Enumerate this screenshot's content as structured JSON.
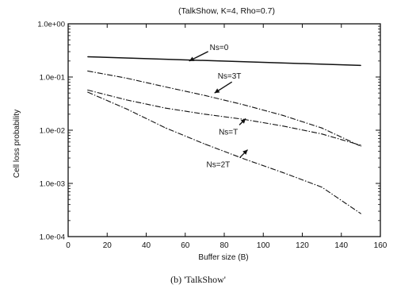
{
  "chart_data": {
    "type": "line",
    "title": "(TalkShow, K=4, Rho=0.7)",
    "xlabel": "Buffer size (B)",
    "ylabel": "Cell loss probability",
    "caption": "(b) 'TalkShow'",
    "y_scale": "log",
    "xlim": [
      0,
      160
    ],
    "ylim": [
      0.0001,
      1
    ],
    "x_ticks": [
      0,
      20,
      40,
      60,
      80,
      100,
      120,
      140,
      160
    ],
    "y_ticks": [
      {
        "value": 1,
        "label": "1.0e+00"
      },
      {
        "value": 0.1,
        "label": "1.0e-01"
      },
      {
        "value": 0.01,
        "label": "1.0e-02"
      },
      {
        "value": 0.001,
        "label": "1.0e-03"
      },
      {
        "value": 0.0001,
        "label": "1.0e-04"
      }
    ],
    "series": [
      {
        "name": "Ns=0",
        "dash": "solid",
        "x": [
          10,
          150
        ],
        "y": [
          0.24,
          0.165
        ]
      },
      {
        "name": "Ns=3T",
        "dash": "dashdot",
        "x": [
          10,
          30,
          50,
          70,
          90,
          110,
          130,
          150
        ],
        "y": [
          0.13,
          0.095,
          0.065,
          0.045,
          0.03,
          0.019,
          0.011,
          0.005
        ]
      },
      {
        "name": "Ns=T",
        "dash": "dashdot",
        "x": [
          10,
          30,
          50,
          70,
          90,
          110,
          130,
          150
        ],
        "y": [
          0.057,
          0.037,
          0.026,
          0.02,
          0.016,
          0.012,
          0.0085,
          0.0052
        ]
      },
      {
        "name": "Ns=2T",
        "dash": "dashdot",
        "x": [
          10,
          30,
          50,
          70,
          90,
          110,
          130,
          150
        ],
        "y": [
          0.052,
          0.025,
          0.011,
          0.0055,
          0.0029,
          0.0016,
          0.00085,
          0.00027
        ]
      }
    ],
    "annotations": [
      {
        "text": "Ns=0",
        "series": "Ns=0",
        "arrow_to": [
          62,
          0.2
        ]
      },
      {
        "text": "Ns=3T",
        "series": "Ns=3T",
        "arrow_to": [
          75,
          0.05
        ]
      },
      {
        "text": "Ns=T",
        "series": "Ns=T",
        "arrow_to": [
          91,
          0.0165
        ]
      },
      {
        "text": "Ns=2T",
        "series": "Ns=2T",
        "arrow_to": [
          92,
          0.0043
        ]
      }
    ],
    "grid": false,
    "legend": "none"
  }
}
